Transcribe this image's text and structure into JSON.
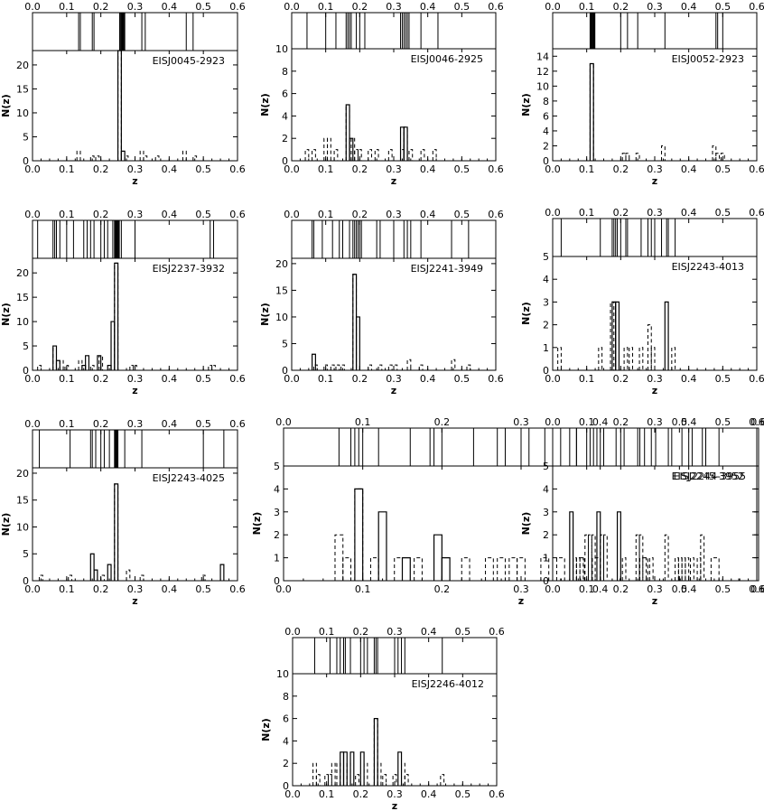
{
  "figure": {
    "xlabel": "z",
    "ylabel": "N(z)",
    "xlim": [
      0,
      0.6
    ],
    "xticks": [
      0.0,
      0.1,
      0.2,
      0.3,
      0.4,
      0.5,
      0.6
    ]
  },
  "chart_data": [
    {
      "type": "bar",
      "name": "EISJ0045-2923",
      "xlabel": "z",
      "ylabel": "N(z)",
      "xlim": [
        0,
        0.6
      ],
      "ylim": [
        0,
        23
      ],
      "yticks": [
        0,
        5,
        10,
        15,
        20
      ],
      "stick_z": [
        0.135,
        0.14,
        0.175,
        0.18,
        0.255,
        0.258,
        0.26,
        0.262,
        0.264,
        0.266,
        0.268,
        0.27,
        0.32,
        0.33,
        0.45,
        0.47
      ],
      "solid_hist": [
        {
          "x": 0.255,
          "n": 23
        },
        {
          "x": 0.265,
          "n": 2
        }
      ],
      "dashed_hist": [
        {
          "x": 0.135,
          "n": 2
        },
        {
          "x": 0.175,
          "n": 1
        },
        {
          "x": 0.19,
          "n": 1
        },
        {
          "x": 0.255,
          "n": 23
        },
        {
          "x": 0.275,
          "n": 1
        },
        {
          "x": 0.32,
          "n": 2
        },
        {
          "x": 0.33,
          "n": 1
        },
        {
          "x": 0.365,
          "n": 1
        },
        {
          "x": 0.445,
          "n": 2
        },
        {
          "x": 0.475,
          "n": 1
        }
      ]
    },
    {
      "type": "bar",
      "name": "EISJ0046-2925",
      "xlabel": "z",
      "ylabel": "N(z)",
      "xlim": [
        0,
        0.6
      ],
      "ylim": [
        0,
        10
      ],
      "yticks": [
        0,
        2,
        4,
        6,
        8,
        10
      ],
      "stick_z": [
        0.045,
        0.1,
        0.13,
        0.16,
        0.165,
        0.17,
        0.175,
        0.19,
        0.2,
        0.215,
        0.32,
        0.325,
        0.33,
        0.335,
        0.34,
        0.345,
        0.38,
        0.43
      ],
      "solid_hist": [
        {
          "x": 0.165,
          "n": 5
        },
        {
          "x": 0.175,
          "n": 2
        },
        {
          "x": 0.325,
          "n": 3
        },
        {
          "x": 0.335,
          "n": 3
        }
      ],
      "dashed_hist": [
        {
          "x": 0.045,
          "n": 1
        },
        {
          "x": 0.065,
          "n": 1
        },
        {
          "x": 0.1,
          "n": 2
        },
        {
          "x": 0.11,
          "n": 2
        },
        {
          "x": 0.13,
          "n": 1
        },
        {
          "x": 0.165,
          "n": 5
        },
        {
          "x": 0.18,
          "n": 2
        },
        {
          "x": 0.19,
          "n": 1
        },
        {
          "x": 0.2,
          "n": 1
        },
        {
          "x": 0.23,
          "n": 1
        },
        {
          "x": 0.25,
          "n": 1
        },
        {
          "x": 0.29,
          "n": 1
        },
        {
          "x": 0.325,
          "n": 1
        },
        {
          "x": 0.335,
          "n": 3
        },
        {
          "x": 0.35,
          "n": 1
        },
        {
          "x": 0.385,
          "n": 1
        },
        {
          "x": 0.42,
          "n": 1
        }
      ]
    },
    {
      "type": "bar",
      "name": "EISJ0052-2923",
      "xlabel": "z",
      "ylabel": "N(z)",
      "xlim": [
        0,
        0.6
      ],
      "ylim": [
        0,
        15
      ],
      "yticks": [
        0,
        2,
        4,
        6,
        8,
        10,
        12,
        14
      ],
      "stick_z": [
        0.11,
        0.112,
        0.114,
        0.116,
        0.118,
        0.12,
        0.122,
        0.124,
        0.2,
        0.22,
        0.25,
        0.33,
        0.48,
        0.485,
        0.5
      ],
      "solid_hist": [
        {
          "x": 0.115,
          "n": 13
        }
      ],
      "dashed_hist": [
        {
          "x": 0.115,
          "n": 13
        },
        {
          "x": 0.21,
          "n": 1
        },
        {
          "x": 0.22,
          "n": 1
        },
        {
          "x": 0.25,
          "n": 1
        },
        {
          "x": 0.325,
          "n": 2
        },
        {
          "x": 0.475,
          "n": 2
        },
        {
          "x": 0.485,
          "n": 1
        },
        {
          "x": 0.5,
          "n": 1
        }
      ]
    },
    {
      "type": "bar",
      "name": "EISJ2237-3932",
      "xlabel": "z",
      "ylabel": "N(z)",
      "xlim": [
        0,
        0.6
      ],
      "ylim": [
        0,
        23
      ],
      "yticks": [
        0,
        5,
        10,
        15,
        20
      ],
      "stick_z": [
        0.015,
        0.06,
        0.065,
        0.07,
        0.08,
        0.1,
        0.12,
        0.15,
        0.16,
        0.17,
        0.18,
        0.2,
        0.21,
        0.22,
        0.235,
        0.24,
        0.242,
        0.244,
        0.246,
        0.248,
        0.25,
        0.252,
        0.254,
        0.26,
        0.3,
        0.52,
        0.53
      ],
      "solid_hist": [
        {
          "x": 0.065,
          "n": 5
        },
        {
          "x": 0.075,
          "n": 2
        },
        {
          "x": 0.15,
          "n": 1
        },
        {
          "x": 0.16,
          "n": 3
        },
        {
          "x": 0.195,
          "n": 3
        },
        {
          "x": 0.225,
          "n": 1
        },
        {
          "x": 0.235,
          "n": 10
        },
        {
          "x": 0.245,
          "n": 22
        }
      ],
      "dashed_hist": [
        {
          "x": 0.02,
          "n": 1
        },
        {
          "x": 0.065,
          "n": 5
        },
        {
          "x": 0.085,
          "n": 2
        },
        {
          "x": 0.1,
          "n": 1
        },
        {
          "x": 0.14,
          "n": 2
        },
        {
          "x": 0.175,
          "n": 1
        },
        {
          "x": 0.2,
          "n": 3
        },
        {
          "x": 0.245,
          "n": 22
        },
        {
          "x": 0.29,
          "n": 1
        },
        {
          "x": 0.3,
          "n": 1
        },
        {
          "x": 0.52,
          "n": 1
        },
        {
          "x": 0.53,
          "n": 1
        }
      ]
    },
    {
      "type": "bar",
      "name": "EISJ2241-3949",
      "xlabel": "z",
      "ylabel": "N(z)",
      "xlim": [
        0,
        0.6
      ],
      "ylim": [
        0,
        21
      ],
      "yticks": [
        0,
        5,
        10,
        15,
        20
      ],
      "stick_z": [
        0.06,
        0.065,
        0.09,
        0.12,
        0.14,
        0.15,
        0.17,
        0.18,
        0.185,
        0.19,
        0.195,
        0.2,
        0.205,
        0.25,
        0.26,
        0.3,
        0.33,
        0.34,
        0.35,
        0.38,
        0.47,
        0.52,
        0.6
      ],
      "solid_hist": [
        {
          "x": 0.065,
          "n": 3
        },
        {
          "x": 0.185,
          "n": 18
        },
        {
          "x": 0.195,
          "n": 10
        }
      ],
      "dashed_hist": [
        {
          "x": 0.07,
          "n": 1
        },
        {
          "x": 0.1,
          "n": 1
        },
        {
          "x": 0.12,
          "n": 1
        },
        {
          "x": 0.135,
          "n": 1
        },
        {
          "x": 0.15,
          "n": 1
        },
        {
          "x": 0.185,
          "n": 18
        },
        {
          "x": 0.23,
          "n": 1
        },
        {
          "x": 0.26,
          "n": 1
        },
        {
          "x": 0.29,
          "n": 1
        },
        {
          "x": 0.305,
          "n": 1
        },
        {
          "x": 0.345,
          "n": 2
        },
        {
          "x": 0.38,
          "n": 1
        },
        {
          "x": 0.475,
          "n": 2
        },
        {
          "x": 0.52,
          "n": 1
        }
      ]
    },
    {
      "type": "bar",
      "name": "EISJ2243-4013",
      "xlabel": "z",
      "ylabel": "N(z)",
      "xlim": [
        0,
        0.6
      ],
      "ylim": [
        0,
        5
      ],
      "yticks": [
        0,
        1,
        2,
        3,
        4,
        5
      ],
      "stick_z": [
        0.025,
        0.14,
        0.175,
        0.18,
        0.185,
        0.19,
        0.2,
        0.215,
        0.22,
        0.26,
        0.28,
        0.29,
        0.3,
        0.32,
        0.335,
        0.34,
        0.36
      ],
      "solid_hist": [
        {
          "x": 0.18,
          "n": 3
        },
        {
          "x": 0.19,
          "n": 3
        },
        {
          "x": 0.335,
          "n": 3
        }
      ],
      "dashed_hist": [
        {
          "x": 0.02,
          "n": 1
        },
        {
          "x": 0.14,
          "n": 1
        },
        {
          "x": 0.175,
          "n": 3
        },
        {
          "x": 0.215,
          "n": 1
        },
        {
          "x": 0.23,
          "n": 1
        },
        {
          "x": 0.26,
          "n": 1
        },
        {
          "x": 0.285,
          "n": 2
        },
        {
          "x": 0.295,
          "n": 1
        },
        {
          "x": 0.355,
          "n": 1
        }
      ]
    },
    {
      "type": "bar",
      "name": "EISJ2243-4025",
      "xlabel": "z",
      "ylabel": "N(z)",
      "xlim": [
        0,
        0.6
      ],
      "ylim": [
        0,
        21
      ],
      "yticks": [
        0,
        5,
        10,
        15,
        20
      ],
      "stick_z": [
        0.02,
        0.11,
        0.17,
        0.175,
        0.185,
        0.2,
        0.21,
        0.225,
        0.24,
        0.242,
        0.244,
        0.246,
        0.248,
        0.25,
        0.27,
        0.32,
        0.5,
        0.56
      ],
      "solid_hist": [
        {
          "x": 0.175,
          "n": 5
        },
        {
          "x": 0.185,
          "n": 2
        },
        {
          "x": 0.225,
          "n": 3
        },
        {
          "x": 0.245,
          "n": 18
        },
        {
          "x": 0.555,
          "n": 3
        }
      ],
      "dashed_hist": [
        {
          "x": 0.025,
          "n": 1
        },
        {
          "x": 0.11,
          "n": 1
        },
        {
          "x": 0.205,
          "n": 1
        },
        {
          "x": 0.245,
          "n": 18
        },
        {
          "x": 0.28,
          "n": 2
        },
        {
          "x": 0.32,
          "n": 1
        },
        {
          "x": 0.5,
          "n": 1
        }
      ]
    },
    {
      "type": "bar",
      "name": "EISJ2244-3955",
      "xlabel": "z",
      "ylabel": "N(z)",
      "xlim": [
        0,
        0.6
      ],
      "ylim": [
        0,
        5
      ],
      "yticks": [
        0,
        1,
        2,
        3,
        4,
        5
      ],
      "stick_z": [
        0.07,
        0.085,
        0.09,
        0.095,
        0.1,
        0.12,
        0.16,
        0.185,
        0.19,
        0.2,
        0.24,
        0.27,
        0.28,
        0.3,
        0.31,
        0.33,
        0.35,
        0.37,
        0.42,
        0.45,
        0.47,
        0.55
      ],
      "solid_hist": [
        {
          "x": 0.095,
          "n": 4
        },
        {
          "x": 0.125,
          "n": 3
        },
        {
          "x": 0.155,
          "n": 1
        },
        {
          "x": 0.195,
          "n": 2
        },
        {
          "x": 0.205,
          "n": 1
        }
      ],
      "dashed_hist": [
        {
          "x": 0.07,
          "n": 2
        },
        {
          "x": 0.08,
          "n": 1
        },
        {
          "x": 0.095,
          "n": 4
        },
        {
          "x": 0.115,
          "n": 1
        },
        {
          "x": 0.145,
          "n": 1
        },
        {
          "x": 0.17,
          "n": 1
        },
        {
          "x": 0.23,
          "n": 1
        },
        {
          "x": 0.26,
          "n": 1
        },
        {
          "x": 0.275,
          "n": 1
        },
        {
          "x": 0.29,
          "n": 1
        },
        {
          "x": 0.3,
          "n": 1
        },
        {
          "x": 0.33,
          "n": 1
        },
        {
          "x": 0.35,
          "n": 1
        },
        {
          "x": 0.375,
          "n": 1
        },
        {
          "x": 0.395,
          "n": 1
        },
        {
          "x": 0.455,
          "n": 1
        },
        {
          "x": 0.545,
          "n": 1
        }
      ]
    },
    {
      "type": "bar",
      "name": "EISJ2245-3952",
      "xlabel": "z",
      "ylabel": "N(z)",
      "xlim": [
        0,
        0.6
      ],
      "ylim": [
        0,
        5
      ],
      "yticks": [
        0,
        1,
        2,
        3,
        4,
        5
      ],
      "stick_z": [
        0.05,
        0.07,
        0.1,
        0.11,
        0.12,
        0.13,
        0.14,
        0.15,
        0.2,
        0.21,
        0.25,
        0.27,
        0.29,
        0.34,
        0.35,
        0.38,
        0.4,
        0.41,
        0.44,
        0.45
      ],
      "solid_hist": [
        {
          "x": 0.055,
          "n": 3
        },
        {
          "x": 0.135,
          "n": 3
        },
        {
          "x": 0.195,
          "n": 3
        }
      ],
      "dashed_hist": [
        {
          "x": 0.065,
          "n": 1
        },
        {
          "x": 0.075,
          "n": 1
        },
        {
          "x": 0.085,
          "n": 1
        },
        {
          "x": 0.1,
          "n": 2
        },
        {
          "x": 0.11,
          "n": 2
        },
        {
          "x": 0.12,
          "n": 2
        },
        {
          "x": 0.145,
          "n": 2
        },
        {
          "x": 0.155,
          "n": 2
        },
        {
          "x": 0.21,
          "n": 1
        },
        {
          "x": 0.25,
          "n": 2
        },
        {
          "x": 0.26,
          "n": 2
        },
        {
          "x": 0.27,
          "n": 1
        },
        {
          "x": 0.29,
          "n": 1
        },
        {
          "x": 0.335,
          "n": 2
        },
        {
          "x": 0.365,
          "n": 1
        },
        {
          "x": 0.375,
          "n": 1
        },
        {
          "x": 0.385,
          "n": 1
        },
        {
          "x": 0.395,
          "n": 1
        },
        {
          "x": 0.41,
          "n": 1
        },
        {
          "x": 0.43,
          "n": 1
        },
        {
          "x": 0.44,
          "n": 2
        }
      ]
    },
    {
      "type": "bar",
      "name": "EISJ2246-4012",
      "xlabel": "z",
      "ylabel": "N(z)",
      "xlim": [
        0,
        0.6
      ],
      "ylim": [
        0,
        10
      ],
      "yticks": [
        0,
        2,
        4,
        6,
        8,
        10
      ],
      "stick_z": [
        0.065,
        0.11,
        0.13,
        0.14,
        0.15,
        0.155,
        0.17,
        0.2,
        0.21,
        0.22,
        0.24,
        0.245,
        0.25,
        0.3,
        0.31,
        0.32,
        0.33,
        0.44
      ],
      "solid_hist": [
        {
          "x": 0.145,
          "n": 3
        },
        {
          "x": 0.155,
          "n": 3
        },
        {
          "x": 0.175,
          "n": 3
        },
        {
          "x": 0.205,
          "n": 3
        },
        {
          "x": 0.245,
          "n": 6
        },
        {
          "x": 0.315,
          "n": 3
        }
      ],
      "dashed_hist": [
        {
          "x": 0.065,
          "n": 2
        },
        {
          "x": 0.075,
          "n": 1
        },
        {
          "x": 0.1,
          "n": 1
        },
        {
          "x": 0.11,
          "n": 1
        },
        {
          "x": 0.12,
          "n": 2
        },
        {
          "x": 0.135,
          "n": 2
        },
        {
          "x": 0.165,
          "n": 2
        },
        {
          "x": 0.19,
          "n": 1
        },
        {
          "x": 0.215,
          "n": 2
        },
        {
          "x": 0.245,
          "n": 6
        },
        {
          "x": 0.255,
          "n": 2
        },
        {
          "x": 0.27,
          "n": 1
        },
        {
          "x": 0.3,
          "n": 1
        },
        {
          "x": 0.325,
          "n": 2
        },
        {
          "x": 0.335,
          "n": 1
        },
        {
          "x": 0.44,
          "n": 1
        }
      ]
    }
  ]
}
